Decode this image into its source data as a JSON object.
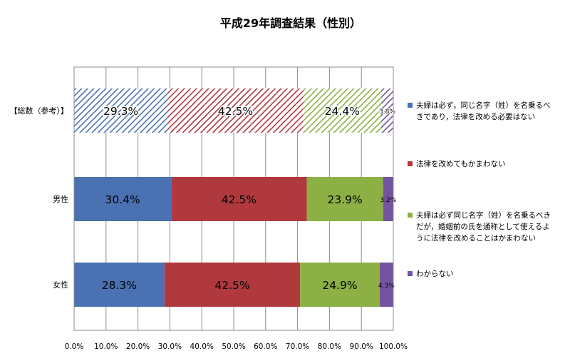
{
  "chart_data": {
    "type": "bar",
    "stacked": true,
    "orientation": "horizontal",
    "title": "平成29年調査結果（性別）",
    "categories": [
      "【総数（参考）】",
      "男性",
      "女性"
    ],
    "series": [
      {
        "name": "夫婦は必ず，同じ名字（姓）を名乗るべきであり，法律を改める必要はない",
        "values": [
          29.3,
          30.4,
          28.3
        ],
        "labels": [
          "29.3%",
          "30.4%",
          "28.3%"
        ]
      },
      {
        "name": "法律を改めてもかまわない",
        "values": [
          42.5,
          42.5,
          42.5
        ],
        "labels": [
          "42.5%",
          "42.5%",
          "42.5%"
        ]
      },
      {
        "name": "夫婦は必ず同じ名字（姓）を名乗るべきだが，婚姻前の氏を通称として使えるように法律を改めることはかまわない",
        "values": [
          24.4,
          23.9,
          24.9
        ],
        "labels": [
          "24.4%",
          "23.9%",
          "24.9%"
        ]
      },
      {
        "name": "わからない",
        "values": [
          3.8,
          3.2,
          4.3
        ],
        "labels": [
          "3.8%",
          "3.2%",
          "4.3%"
        ]
      }
    ],
    "xlim": [
      0,
      100
    ],
    "x_ticks": [
      "0.0%",
      "10.0%",
      "20.0%",
      "30.0%",
      "40.0%",
      "50.0%",
      "60.0%",
      "70.0%",
      "80.0%",
      "90.0%",
      "100.0%"
    ],
    "hatched_categories": [
      "【総数（参考）】"
    ],
    "colors": [
      "#4a72b2",
      "#b0393e",
      "#8cb043",
      "#7354a0"
    ],
    "grid": true,
    "legend_position": "right"
  },
  "legend": {
    "items": [
      {
        "lines": [
          "夫婦は必ず，同じ名字（姓）を名乗るべ",
          "きであり，法律を改める必要はない"
        ]
      },
      {
        "lines": [
          "法律を改めてもかまわない"
        ]
      },
      {
        "lines": [
          "夫婦は必ず同じ名字（姓）を名乗るべき",
          "だが，婚姻前の氏を通称として使えるよ",
          "うに法律を改めることはかまわない"
        ]
      },
      {
        "lines": [
          "わからない"
        ]
      }
    ]
  }
}
